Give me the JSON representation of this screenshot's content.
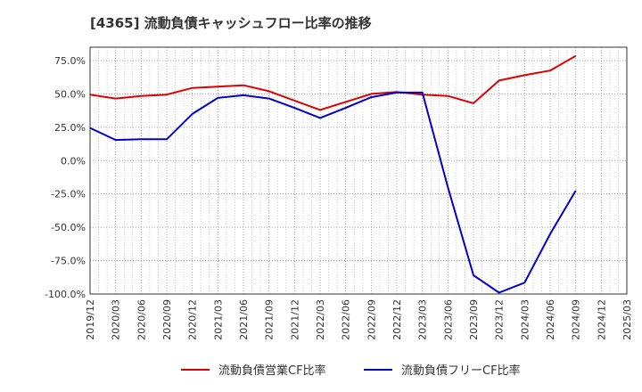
{
  "chart_data": {
    "type": "line",
    "title": "[4365]  流動負債キャッシュフロー比率の推移",
    "xlabel": "",
    "ylabel": "",
    "ylim": [
      -100,
      85
    ],
    "yticks": [
      75,
      50,
      25,
      0,
      -25,
      -50,
      -75,
      -100
    ],
    "ytick_labels": [
      "75.0%",
      "50.0%",
      "25.0%",
      "0.0%",
      "-25.0%",
      "-50.0%",
      "-75.0%",
      "-100.0%"
    ],
    "categories": [
      "2019/12",
      "2020/03",
      "2020/06",
      "2020/09",
      "2020/12",
      "2021/03",
      "2021/06",
      "2021/09",
      "2021/12",
      "2022/03",
      "2022/06",
      "2022/09",
      "2022/12",
      "2023/03",
      "2023/06",
      "2023/09",
      "2023/12",
      "2024/03",
      "2024/06",
      "2024/09",
      "2024/12",
      "2025/03"
    ],
    "grid": true,
    "legend_position": "bottom",
    "series": [
      {
        "name": "流動負債営業CF比率",
        "color": "#dd0000",
        "values": [
          49.5,
          46.5,
          48.5,
          49.5,
          54.5,
          55.5,
          56.5,
          52.0,
          45.0,
          38.0,
          44.0,
          50.0,
          51.5,
          49.5,
          48.5,
          43.0,
          60.0,
          64.0,
          67.5,
          78.5,
          null,
          null
        ]
      },
      {
        "name": "流動負債フリーCF比率",
        "color": "#0000cc",
        "values": [
          24.5,
          15.5,
          16.0,
          16.0,
          35.0,
          47.0,
          49.0,
          46.5,
          39.5,
          32.0,
          39.5,
          47.5,
          51.0,
          51.0,
          -20.0,
          -86.0,
          -99.0,
          -91.5,
          -55.0,
          -22.5,
          null,
          null
        ]
      }
    ]
  }
}
